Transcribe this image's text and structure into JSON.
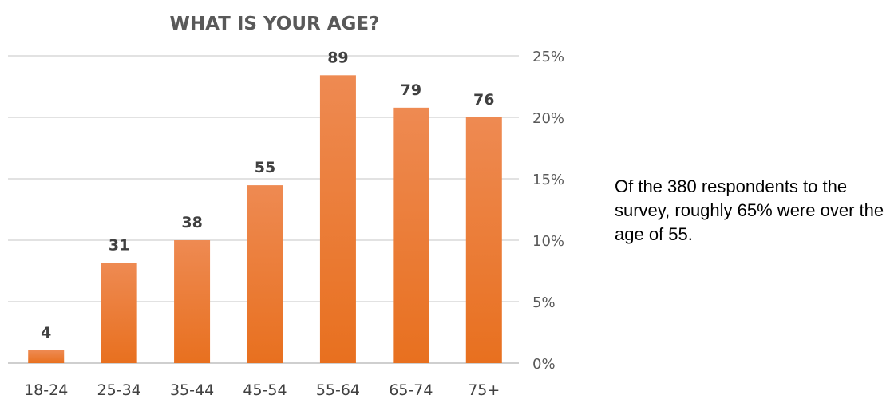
{
  "caption": "Of the 380 respondents to the survey, roughly 65% were over the age of 55.",
  "chart_data": {
    "type": "bar",
    "title": "WHAT IS YOUR AGE?",
    "xlabel": "",
    "ylabel": "",
    "categories": [
      "18-24",
      "25-34",
      "35-44",
      "45-54",
      "55-64",
      "65-74",
      "75+"
    ],
    "values": [
      4,
      31,
      38,
      55,
      89,
      79,
      76
    ],
    "data_labels": [
      "4",
      "31",
      "38",
      "55",
      "89",
      "79",
      "76"
    ],
    "y_axis_side": "right",
    "y_ticks": [
      "0%",
      "5%",
      "10%",
      "15%",
      "20%",
      "25%"
    ],
    "ylim_percent": [
      0,
      25
    ],
    "total": 380,
    "grid": true,
    "legend": "none",
    "colors": {
      "bar_top": "#ee8a52",
      "bar_bottom": "#e8701f",
      "title": "#595959",
      "gridline": "#d9d9d9"
    }
  }
}
